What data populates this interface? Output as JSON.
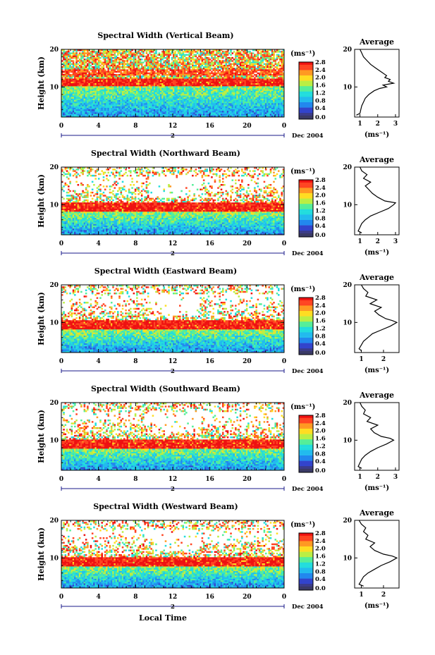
{
  "chart_data": [
    {
      "type": "heatmap",
      "title": "Spectral Width (Vertical Beam)",
      "ylabel": "Height (km)",
      "y_ticks": [
        "20",
        "10"
      ],
      "x_ticks": [
        "0",
        "4",
        "8",
        "12",
        "16",
        "20",
        "0"
      ],
      "date_marker": "2",
      "date_label": "Dec 2004",
      "xlim": [
        0,
        24
      ],
      "ylim": [
        2,
        20
      ],
      "red_band": [
        10.3,
        12.2
      ],
      "upper_sparse": false,
      "colorbar": {
        "unit": "(ms⁻¹)",
        "ticks": [
          "2.8",
          "2.4",
          "2.0",
          "1.6",
          "1.2",
          "0.8",
          "0.4",
          "0.0"
        ]
      },
      "average": {
        "title": "Average",
        "xlabel": "(ms⁻¹)",
        "x_ticks": [
          "1",
          "2",
          "3"
        ],
        "y_ticks": [
          "20",
          "10"
        ],
        "xlim": [
          0.7,
          3.2
        ],
        "profile": [
          [
            2.5,
            0.8
          ],
          [
            3,
            1.0
          ],
          [
            4,
            1.05
          ],
          [
            5,
            1.1
          ],
          [
            6,
            1.2
          ],
          [
            7,
            1.3
          ],
          [
            8,
            1.5
          ],
          [
            9,
            1.8
          ],
          [
            9.6,
            2.1
          ],
          [
            10,
            2.5
          ],
          [
            10.5,
            2.3
          ],
          [
            11,
            2.9
          ],
          [
            11.5,
            2.6
          ],
          [
            12,
            2.7
          ],
          [
            12.5,
            2.4
          ],
          [
            13,
            2.5
          ],
          [
            14,
            2.2
          ],
          [
            15,
            1.9
          ],
          [
            16,
            1.6
          ],
          [
            17,
            1.4
          ],
          [
            18,
            1.2
          ],
          [
            19,
            1.1
          ],
          [
            20,
            1.0
          ]
        ]
      }
    },
    {
      "type": "heatmap",
      "title": "Spectral Width (Northward Beam)",
      "ylabel": "Height (km)",
      "y_ticks": [
        "20",
        "10"
      ],
      "x_ticks": [
        "0",
        "4",
        "8",
        "12",
        "16",
        "20",
        "0"
      ],
      "date_marker": "2",
      "date_label": "Dec 2004",
      "xlim": [
        0,
        24
      ],
      "ylim": [
        2,
        20
      ],
      "red_band": [
        8,
        10.5
      ],
      "upper_sparse": true,
      "colorbar": {
        "unit": "(ms⁻¹)",
        "ticks": [
          "2.8",
          "2.4",
          "2.0",
          "1.6",
          "1.2",
          "0.8",
          "0.4",
          "0.0"
        ]
      },
      "average": {
        "title": "Average",
        "xlabel": "(ms⁻¹)",
        "x_ticks": [
          "1",
          "2",
          "3"
        ],
        "y_ticks": [
          "20",
          "10"
        ],
        "xlim": [
          0.7,
          3.2
        ],
        "profile": [
          [
            2.5,
            1.1
          ],
          [
            3,
            0.9
          ],
          [
            4,
            1.0
          ],
          [
            5,
            1.1
          ],
          [
            6,
            1.3
          ],
          [
            7,
            1.6
          ],
          [
            8,
            2.1
          ],
          [
            9,
            2.6
          ],
          [
            10,
            2.9
          ],
          [
            10.5,
            3.0
          ],
          [
            11,
            2.4
          ],
          [
            12,
            2.0
          ],
          [
            13,
            1.7
          ],
          [
            14,
            1.5
          ],
          [
            15,
            1.3
          ],
          [
            16,
            1.6
          ],
          [
            17,
            1.2
          ],
          [
            18,
            1.4
          ],
          [
            19,
            1.1
          ],
          [
            20,
            1.0
          ]
        ]
      }
    },
    {
      "type": "heatmap",
      "title": "Spectral Width (Eastward Beam)",
      "ylabel": "Height (km)",
      "y_ticks": [
        "20",
        "10"
      ],
      "x_ticks": [
        "0",
        "4",
        "8",
        "12",
        "16",
        "20",
        "0"
      ],
      "date_marker": "2",
      "date_label": "Dec 2004",
      "xlim": [
        0,
        24
      ],
      "ylim": [
        2,
        20
      ],
      "red_band": [
        8,
        10.5
      ],
      "upper_sparse": true,
      "colorbar": {
        "unit": "(ms⁻¹)",
        "ticks": [
          "2.8",
          "2.4",
          "2.0",
          "1.6",
          "1.2",
          "0.8",
          "0.4",
          "0.0"
        ]
      },
      "average": {
        "title": "Average",
        "xlabel": "(ms⁻¹)",
        "x_ticks": [
          "1",
          "2"
        ],
        "y_ticks": [
          "20",
          "10"
        ],
        "xlim": [
          0.7,
          2.7
        ],
        "profile": [
          [
            2.5,
            1.0
          ],
          [
            3,
            0.9
          ],
          [
            4,
            1.0
          ],
          [
            5,
            1.1
          ],
          [
            6,
            1.3
          ],
          [
            7,
            1.5
          ],
          [
            8,
            1.9
          ],
          [
            9,
            2.3
          ],
          [
            10,
            2.6
          ],
          [
            10.5,
            2.4
          ],
          [
            11,
            2.1
          ],
          [
            12,
            1.8
          ],
          [
            13,
            1.6
          ],
          [
            14,
            1.9
          ],
          [
            15,
            1.4
          ],
          [
            16,
            1.7
          ],
          [
            17,
            1.2
          ],
          [
            18,
            1.3
          ],
          [
            19,
            1.1
          ],
          [
            20,
            1.0
          ]
        ]
      }
    },
    {
      "type": "heatmap",
      "title": "Spectral Width (Southward Beam)",
      "ylabel": "Height (km)",
      "y_ticks": [
        "20",
        "10"
      ],
      "x_ticks": [
        "0",
        "4",
        "8",
        "12",
        "16",
        "20",
        "0"
      ],
      "date_marker": "2",
      "date_label": "Dec 2004",
      "xlim": [
        0,
        24
      ],
      "ylim": [
        2,
        20
      ],
      "red_band": [
        7.8,
        10.3
      ],
      "upper_sparse": true,
      "colorbar": {
        "unit": "(ms⁻¹)",
        "ticks": [
          "2.8",
          "2.4",
          "2.0",
          "1.6",
          "1.2",
          "0.8",
          "0.4",
          "0.0"
        ]
      },
      "average": {
        "title": "Average",
        "xlabel": "(ms⁻¹)",
        "x_ticks": [
          "1",
          "2",
          "3"
        ],
        "y_ticks": [
          "20",
          "10"
        ],
        "xlim": [
          0.7,
          3.2
        ],
        "profile": [
          [
            2.5,
            1.1
          ],
          [
            3,
            0.9
          ],
          [
            4,
            1.0
          ],
          [
            5,
            1.1
          ],
          [
            6,
            1.3
          ],
          [
            7,
            1.6
          ],
          [
            8,
            2.0
          ],
          [
            9,
            2.5
          ],
          [
            10,
            2.9
          ],
          [
            10.5,
            2.7
          ],
          [
            11,
            2.2
          ],
          [
            12,
            1.8
          ],
          [
            13,
            1.6
          ],
          [
            14,
            2.0
          ],
          [
            15,
            1.4
          ],
          [
            16,
            1.6
          ],
          [
            17,
            1.2
          ],
          [
            18,
            1.3
          ],
          [
            19,
            1.1
          ],
          [
            20,
            1.0
          ]
        ]
      }
    },
    {
      "type": "heatmap",
      "title": "Spectral Width (Westward Beam)",
      "ylabel": "Height (km)",
      "y_ticks": [
        "20",
        "10"
      ],
      "x_ticks": [
        "0",
        "4",
        "8",
        "12",
        "16",
        "20",
        "0"
      ],
      "date_marker": "2",
      "date_label": "Dec 2004",
      "xlabel": "Local Time",
      "xlim": [
        0,
        24
      ],
      "ylim": [
        2,
        20
      ],
      "red_band": [
        7.8,
        10.3
      ],
      "upper_sparse": true,
      "colorbar": {
        "unit": "(ms⁻¹)",
        "ticks": [
          "2.8",
          "2.4",
          "2.0",
          "1.6",
          "1.2",
          "0.8",
          "0.4",
          "0.0"
        ]
      },
      "average": {
        "title": "Average",
        "xlabel": "(ms⁻¹)",
        "x_ticks": [
          "1",
          "2"
        ],
        "y_ticks": [
          "20",
          "10"
        ],
        "xlim": [
          0.7,
          2.7
        ],
        "profile": [
          [
            2.5,
            1.1
          ],
          [
            3,
            0.9
          ],
          [
            4,
            1.0
          ],
          [
            5,
            1.1
          ],
          [
            6,
            1.3
          ],
          [
            7,
            1.6
          ],
          [
            8,
            1.9
          ],
          [
            9,
            2.3
          ],
          [
            10,
            2.6
          ],
          [
            10.5,
            2.4
          ],
          [
            11,
            2.0
          ],
          [
            12,
            1.6
          ],
          [
            13,
            1.4
          ],
          [
            14,
            1.6
          ],
          [
            15,
            1.2
          ],
          [
            16,
            1.3
          ],
          [
            17,
            1.1
          ],
          [
            18,
            1.2
          ],
          [
            19,
            1.0
          ],
          [
            20,
            0.9
          ]
        ]
      }
    }
  ],
  "colors": {
    "red": "#ee2222",
    "cmap": [
      "#3a3a88",
      "#3344cc",
      "#2288ee",
      "#22bbee",
      "#22dddd",
      "#55ee99",
      "#bbee44",
      "#ffdd22",
      "#ff9922",
      "#ff4422",
      "#ee1111"
    ]
  }
}
